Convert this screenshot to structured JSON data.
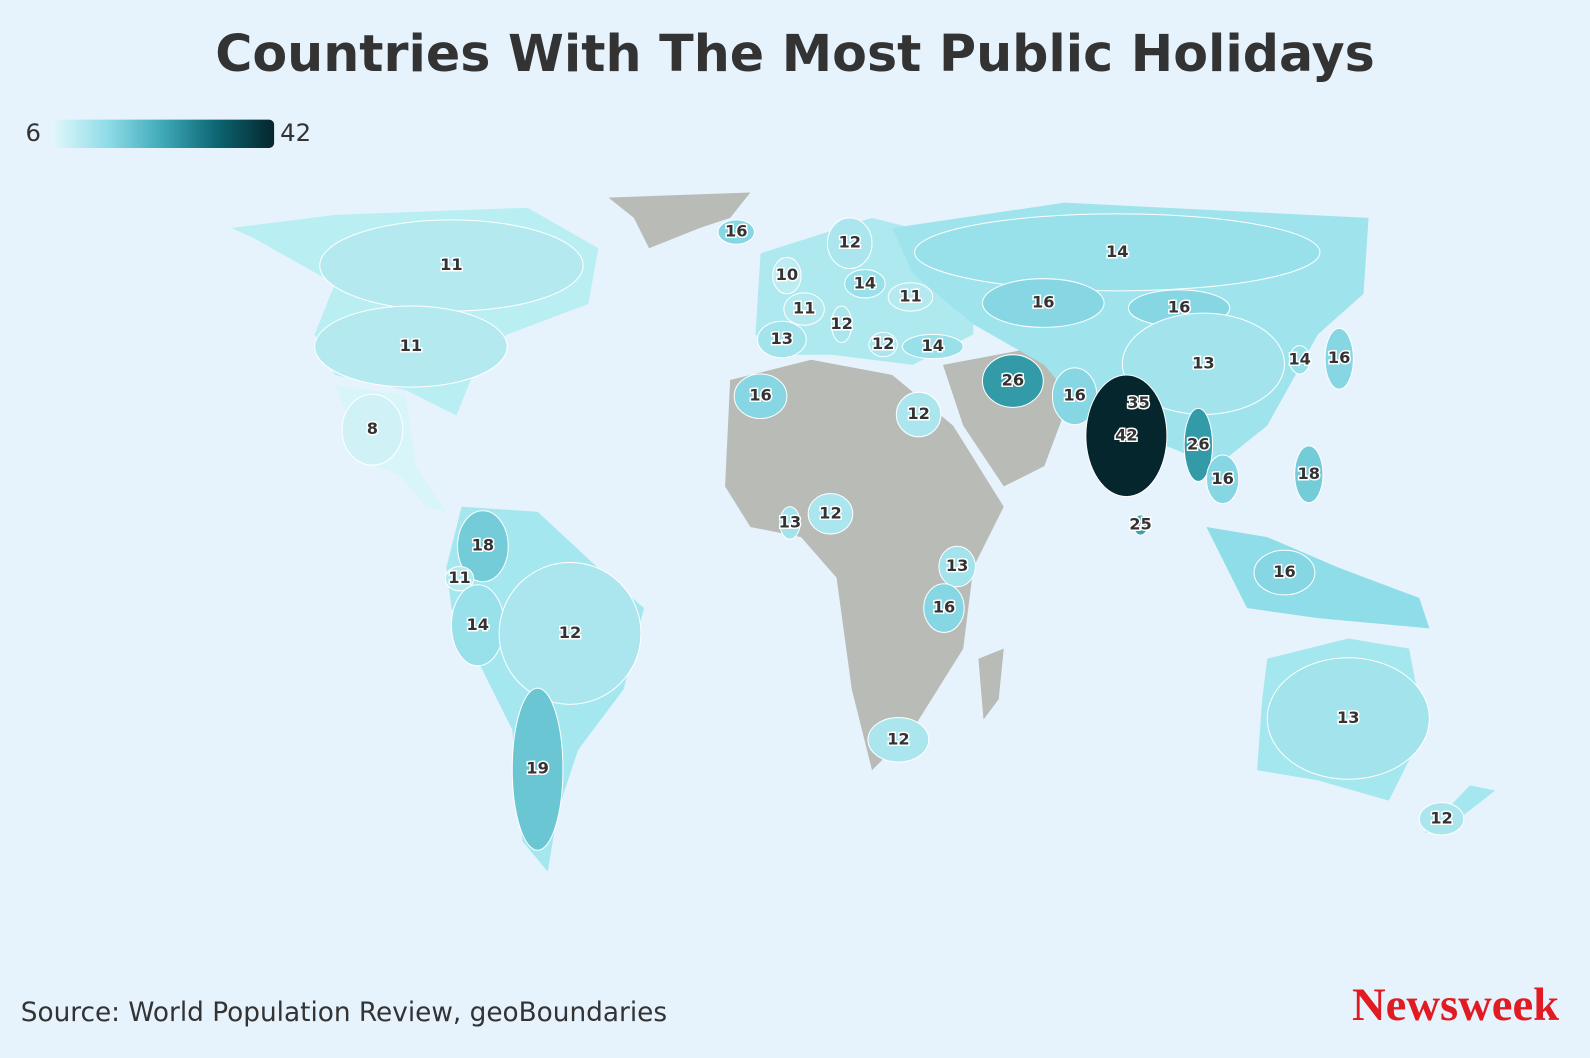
{
  "chart_data": {
    "type": "choropleth",
    "title": "Countries With The Most Public Holidays",
    "source": "Source: World Population Review, geoBoundaries",
    "brand": "Newsweek",
    "values": [
      16,
      11,
      11,
      8,
      12,
      10,
      14,
      11,
      11,
      12,
      13,
      12,
      14,
      16,
      12,
      14,
      16,
      16,
      13,
      14,
      16,
      26,
      16,
      35,
      42,
      26,
      16,
      18,
      25,
      16,
      12,
      13,
      13,
      16,
      12,
      18,
      11,
      14,
      12,
      19,
      13,
      12
    ],
    "colorlim": [
      6,
      42
    ],
    "colorticks": [
      6,
      42
    ],
    "colors": [
      "#e3f8fb",
      "#8fdde8",
      "#3fa9b8",
      "#0b6470",
      "#05262c"
    ],
    "no_data_color": "#b8bbb6"
  }
}
